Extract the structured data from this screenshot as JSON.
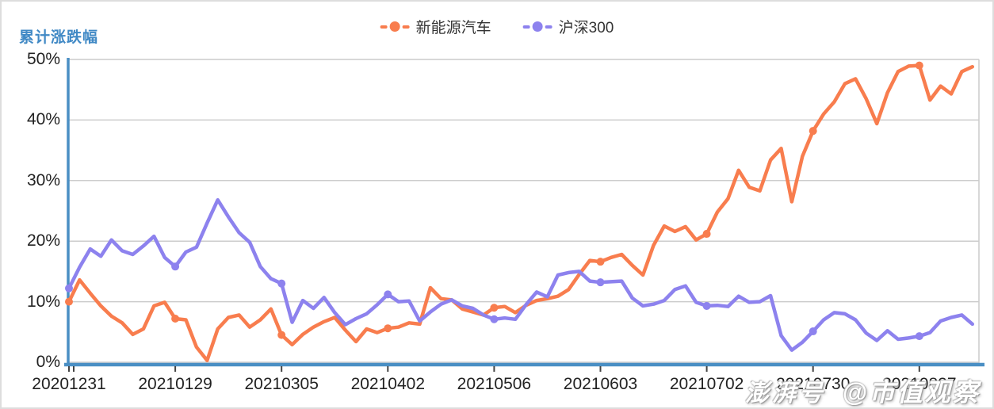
{
  "title": "累计涨跌幅",
  "legend": [
    {
      "label": "新能源汽车",
      "color": "#f87d4e"
    },
    {
      "label": "沪深300",
      "color": "#8d82ee"
    }
  ],
  "watermark": {
    "part1": "澎湃号",
    "part2": "@市值观察"
  },
  "colors": {
    "axis_blue": "#4a8fc4",
    "grid": "#cccccc",
    "tick": "#444444",
    "label_text": "#222222",
    "title_blue": "#4089c5"
  },
  "chart_data": {
    "type": "line",
    "title": "累计涨跌幅",
    "xlabel": "",
    "ylabel": "累计涨跌幅 (%)",
    "ylim": [
      -0.5,
      50
    ],
    "yticks": [
      0,
      10,
      20,
      30,
      40,
      50
    ],
    "ytick_labels": [
      "0%",
      "10%",
      "20%",
      "30%",
      "40%",
      "50%"
    ],
    "grid": true,
    "legend_position": "top-center",
    "x_tick_labels": [
      "20201231",
      "20210129",
      "20210305",
      "20210402",
      "20210506",
      "20210603",
      "20210702",
      "20210730",
      "20210827"
    ],
    "x_note": "86 samples, one every 2 trading days; axis tick every 10th sample; line continues ~10 days past last tick",
    "tick_every_samples": 10,
    "marker_every_samples": 10,
    "series": [
      {
        "name": "新能源汽车",
        "color": "#f87d4e",
        "values": [
          10.0,
          13.6,
          11.4,
          9.3,
          7.6,
          6.5,
          4.6,
          5.5,
          9.3,
          9.9,
          7.2,
          7.0,
          2.5,
          0.3,
          5.5,
          7.4,
          7.8,
          5.8,
          7.0,
          8.8,
          4.5,
          2.9,
          4.6,
          5.8,
          6.7,
          7.4,
          5.3,
          3.4,
          5.5,
          4.9,
          5.6,
          5.8,
          6.5,
          6.3,
          12.3,
          10.5,
          10.3,
          8.8,
          8.3,
          7.8,
          9.0,
          9.2,
          8.2,
          9.4,
          10.2,
          10.5,
          10.9,
          12.0,
          14.5,
          16.8,
          16.6,
          17.3,
          17.8,
          16.0,
          14.4,
          19.3,
          22.5,
          21.6,
          22.4,
          20.2,
          21.2,
          24.8,
          27.0,
          31.7,
          28.9,
          28.3,
          33.4,
          35.3,
          26.5,
          34.0,
          38.2,
          41.0,
          43.0,
          46.0,
          46.8,
          43.5,
          39.4,
          44.5,
          48.0,
          48.9,
          49.0,
          43.3,
          45.6,
          44.3,
          48.0,
          48.8
        ]
      },
      {
        "name": "沪深300",
        "color": "#8d82ee",
        "values": [
          12.2,
          15.7,
          18.7,
          17.5,
          20.2,
          18.4,
          17.8,
          19.2,
          20.8,
          17.3,
          15.8,
          18.2,
          19.0,
          23.0,
          26.8,
          24.0,
          21.4,
          19.8,
          15.8,
          13.8,
          13.0,
          6.6,
          10.2,
          8.9,
          10.7,
          8.2,
          6.2,
          7.2,
          8.0,
          9.5,
          11.2,
          10.0,
          10.1,
          6.8,
          8.3,
          9.6,
          10.3,
          9.3,
          8.9,
          7.8,
          7.1,
          7.3,
          7.1,
          9.5,
          11.6,
          10.8,
          14.4,
          14.8,
          15.0,
          13.4,
          13.2,
          13.3,
          13.4,
          10.6,
          9.3,
          9.6,
          10.2,
          12.0,
          12.6,
          9.9,
          9.3,
          9.4,
          9.2,
          10.9,
          9.9,
          10.0,
          11.0,
          4.4,
          2.0,
          3.3,
          5.1,
          7.0,
          8.2,
          8.0,
          7.0,
          4.8,
          3.6,
          5.2,
          3.8,
          4.0,
          4.3,
          4.9,
          6.8,
          7.4,
          7.8,
          6.3
        ]
      }
    ]
  }
}
